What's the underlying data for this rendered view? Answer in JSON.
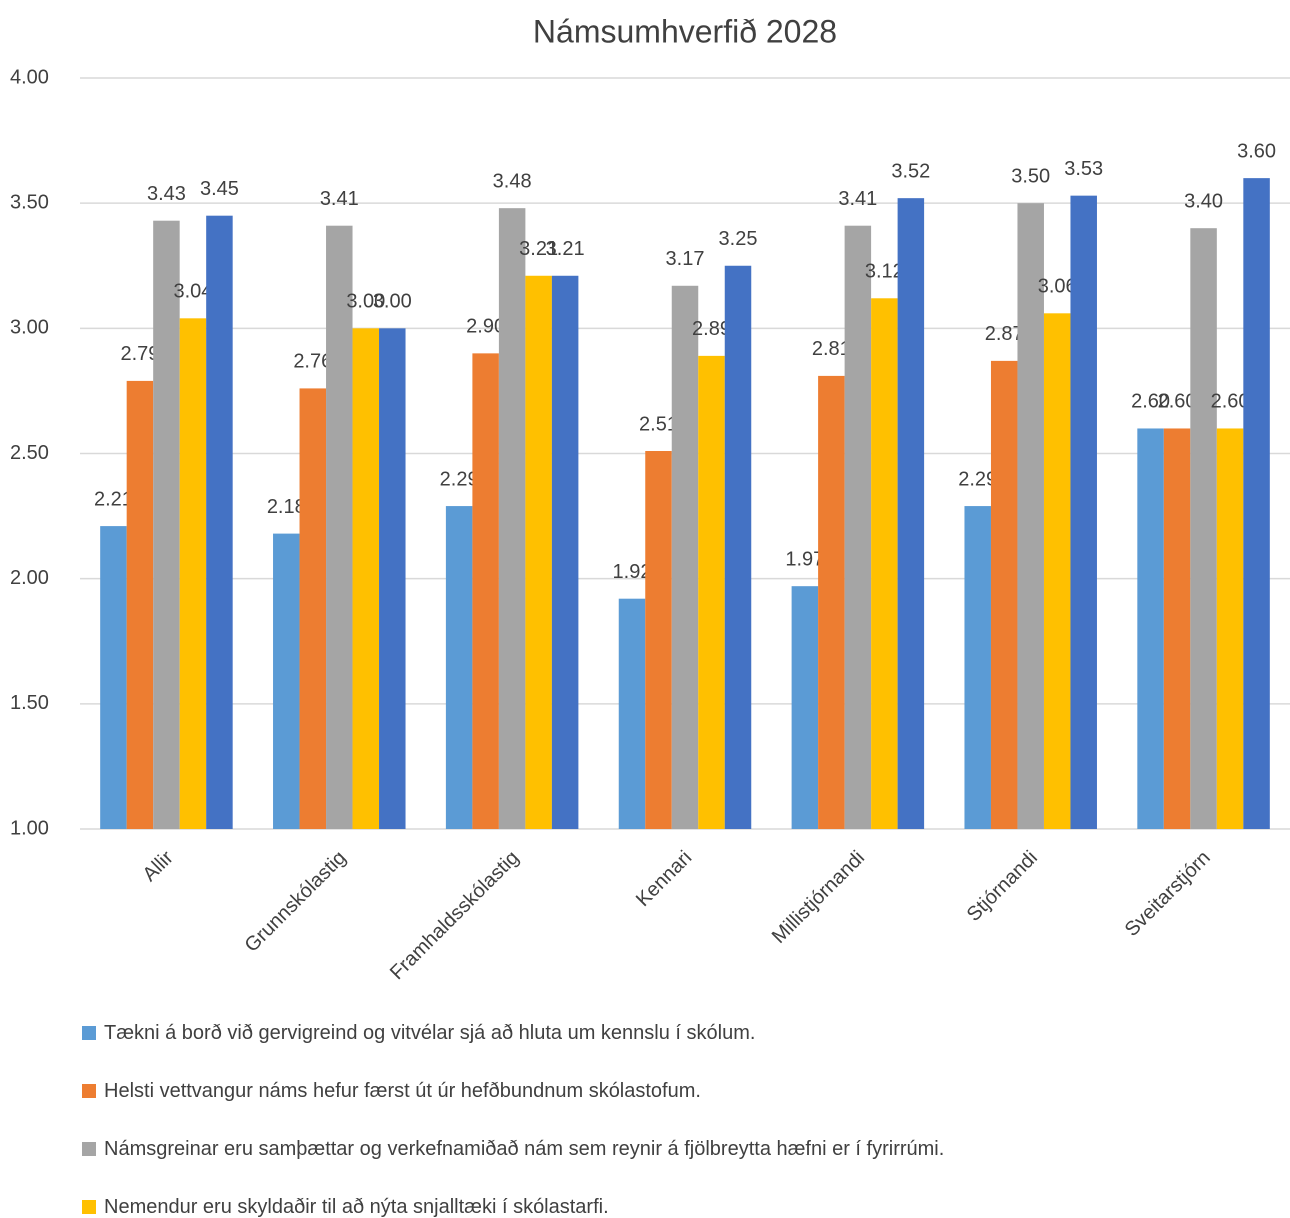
{
  "chart_data": {
    "type": "bar",
    "title": "Námsumhverfið 2028",
    "categories": [
      "Allir",
      "Grunnskólastig",
      "Framhaldsskólastig",
      "Kennari",
      "Millistjórnandi",
      "Stjórnandi",
      "Sveitarstjórn"
    ],
    "series": [
      {
        "name": "Tækni á borð við gervigreind og vitvélar sjá að hluta um kennslu í skólum.",
        "color": "#5b9bd5",
        "values": [
          2.21,
          2.18,
          2.29,
          1.92,
          1.97,
          2.29,
          2.6
        ],
        "value_labels": [
          "2.21",
          "2.18",
          "2.29",
          "1.92",
          "1.97",
          "2.29",
          "2.60"
        ]
      },
      {
        "name": "Helsti vettvangur náms hefur færst út úr hefðbundnum skólastofum.",
        "color": "#ed7d31",
        "values": [
          2.79,
          2.76,
          2.9,
          2.51,
          2.81,
          2.87,
          2.6
        ],
        "value_labels": [
          "2.79",
          "2.76",
          "2.90",
          "2.51",
          "2.81",
          "2.87",
          "2.60"
        ]
      },
      {
        "name": "Námsgreinar eru samþættar og verkefnamiðað nám sem reynir á fjölbreytta hæfni er í fyrirrúmi.",
        "color": "#a5a5a5",
        "values": [
          3.43,
          3.41,
          3.48,
          3.17,
          3.41,
          3.5,
          3.4
        ],
        "value_labels": [
          "3.43",
          "3.41",
          "3.48",
          "3.17",
          "3.41",
          "3.50",
          "3.40"
        ]
      },
      {
        "name": "Nemendur eru skyldaðir til að nýta snjalltæki í skólastarfi.",
        "color": "#ffc000",
        "values": [
          3.04,
          3.0,
          3.21,
          2.89,
          3.12,
          3.06,
          2.6
        ],
        "value_labels": [
          "3.04",
          "3.00",
          "3.21",
          "2.89",
          "3.12",
          "3.06",
          "2.60"
        ]
      },
      {
        "color": "#4472c4",
        "values": [
          3.45,
          3.0,
          3.21,
          3.25,
          3.52,
          3.53,
          3.6
        ],
        "value_labels": [
          "3.45",
          "3.00",
          "3.21",
          "3.25",
          "3.52",
          "3.53",
          "3.60"
        ]
      }
    ],
    "ylim": [
      1,
      4
    ],
    "yticks": [
      {
        "value": 1,
        "label": "1.00"
      },
      {
        "value": 1.5,
        "label": "1.50"
      },
      {
        "value": 2,
        "label": "2.00"
      },
      {
        "value": 2.5,
        "label": "2.50"
      },
      {
        "value": 3,
        "label": "3.00"
      },
      {
        "value": 3.5,
        "label": "3.50"
      },
      {
        "value": 4,
        "label": "4.00"
      }
    ],
    "grid": true
  }
}
